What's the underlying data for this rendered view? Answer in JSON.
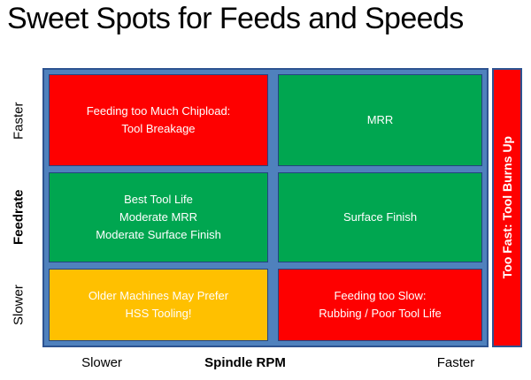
{
  "title": "Sweet Spots for Feeds and Speeds",
  "colors": {
    "red": "#FE0000",
    "green": "#00A650",
    "yellow": "#FFC000",
    "frame_blue": "#4F81BD",
    "frame_border": "#2D5391",
    "text_light": "#FFFFFF",
    "text_dark": "#000000"
  },
  "y_axis": {
    "top_label": "Faster",
    "axis_label": "Feedrate",
    "bottom_label": "Slower"
  },
  "x_axis": {
    "left_label": "Slower",
    "axis_label": "Spindle RPM",
    "right_label": "Faster"
  },
  "matrix": {
    "cells": [
      {
        "position": "top-left",
        "color": "red",
        "text": "Feeding too Much Chipload:\nTool Breakage"
      },
      {
        "position": "top-right",
        "color": "green",
        "text": "MRR"
      },
      {
        "position": "middle-left",
        "color": "green",
        "text": "Best Tool Life\nModerate MRR\nModerate Surface Finish"
      },
      {
        "position": "middle-right",
        "color": "green",
        "text": "Surface Finish"
      },
      {
        "position": "bottom-left",
        "color": "yellow",
        "text": "Older Machines May Prefer\nHSS Tooling!"
      },
      {
        "position": "bottom-right",
        "color": "red",
        "text": "Feeding too Slow:\nRubbing / Poor Tool Life"
      }
    ]
  },
  "side_bar": {
    "text": "Too Fast: Tool Burns Up",
    "color": "red"
  }
}
